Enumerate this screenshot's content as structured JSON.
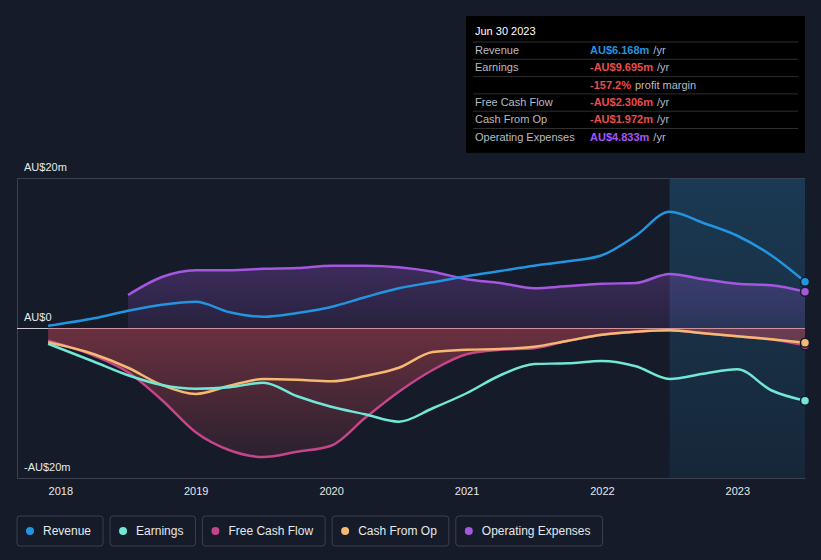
{
  "chart_data": {
    "type": "line",
    "x": [
      2017.91,
      2018.25,
      2018.5,
      2018.75,
      2019,
      2019.25,
      2019.5,
      2019.75,
      2020,
      2020.25,
      2020.5,
      2020.75,
      2021,
      2021.25,
      2021.5,
      2021.75,
      2022,
      2022.25,
      2022.5,
      2022.75,
      2023,
      2023.25,
      2023.5
    ],
    "xlim": [
      2017.68,
      2023.5
    ],
    "xticks": [
      2018,
      2019,
      2020,
      2021,
      2022,
      2023
    ],
    "ylim": [
      -20,
      20
    ],
    "yticks": [
      {
        "value": 20,
        "label": "AU$20m"
      },
      {
        "value": 0,
        "label": "AU$0"
      },
      {
        "value": -20,
        "label": "-AU$20m"
      }
    ],
    "grid": true,
    "legend": "bottom-left",
    "marker": "circle",
    "highlight": [
      2022.5,
      2023.5
    ],
    "series": [
      {
        "name": "Revenue",
        "color": "#2394df",
        "type": "line",
        "values": [
          0.3,
          1.3,
          2.3,
          3.1,
          3.5,
          2.1,
          1.5,
          2.0,
          2.8,
          4.1,
          5.3,
          6.1,
          6.9,
          7.6,
          8.3,
          8.9,
          9.7,
          12.3,
          15.5,
          14.0,
          12.3,
          9.7,
          6.168
        ]
      },
      {
        "name": "Earnings",
        "color": "#71e7d6",
        "type": "line",
        "values": [
          -2.1,
          -4.5,
          -6.3,
          -7.6,
          -8.1,
          -7.9,
          -7.3,
          -9.1,
          -10.5,
          -11.5,
          -12.5,
          -10.7,
          -8.7,
          -6.3,
          -4.8,
          -4.7,
          -4.4,
          -5.1,
          -6.8,
          -6.1,
          -5.5,
          -8.3,
          -9.695
        ]
      },
      {
        "name": "Free Cash Flow",
        "color": "#c4458a",
        "type": "area",
        "values": [
          -1.7,
          -3.7,
          -5.9,
          -9.6,
          -13.9,
          -16.3,
          -17.2,
          -16.5,
          -15.7,
          -12.0,
          -8.5,
          -5.6,
          -3.5,
          -2.9,
          -2.7,
          -1.7,
          -0.9,
          -0.5,
          -0.3,
          -0.7,
          -1.1,
          -1.5,
          -2.306
        ]
      },
      {
        "name": "Cash From Op",
        "color": "#f5b971",
        "type": "line",
        "values": [
          -1.9,
          -3.5,
          -5.3,
          -7.6,
          -8.8,
          -7.7,
          -6.8,
          -6.9,
          -7.1,
          -6.4,
          -5.3,
          -3.2,
          -2.9,
          -2.8,
          -2.5,
          -1.7,
          -0.9,
          -0.5,
          -0.3,
          -0.7,
          -1.1,
          -1.5,
          -1.972
        ]
      },
      {
        "name": "Operating Expenses",
        "color": "#a557e0",
        "type": "area",
        "values": [
          null,
          null,
          4.4,
          6.8,
          7.7,
          7.7,
          7.9,
          8.0,
          8.3,
          8.3,
          8.1,
          7.5,
          6.5,
          6.0,
          5.3,
          5.6,
          5.9,
          6.0,
          7.2,
          6.5,
          5.9,
          5.7,
          4.833
        ]
      }
    ],
    "tooltip": {
      "title": "Jun 30 2023",
      "rows": [
        {
          "label": "Revenue",
          "value": "AU$6.168m",
          "unit": "/yr",
          "color": "#2394df"
        },
        {
          "label": "Earnings",
          "value": "-AU$9.695m",
          "unit": "/yr",
          "color": "#e94d4d"
        },
        {
          "value": "-157.2%",
          "unit": "profit margin",
          "color": "#e94d4d"
        },
        {
          "label": "Free Cash Flow",
          "value": "-AU$2.306m",
          "unit": "/yr",
          "color": "#e94d4d"
        },
        {
          "label": "Cash From Op",
          "value": "-AU$1.972m",
          "unit": "/yr",
          "color": "#e94d4d"
        },
        {
          "label": "Operating Expenses",
          "value": "AU$4.833m",
          "unit": "/yr",
          "color": "#a855f7"
        }
      ]
    }
  }
}
